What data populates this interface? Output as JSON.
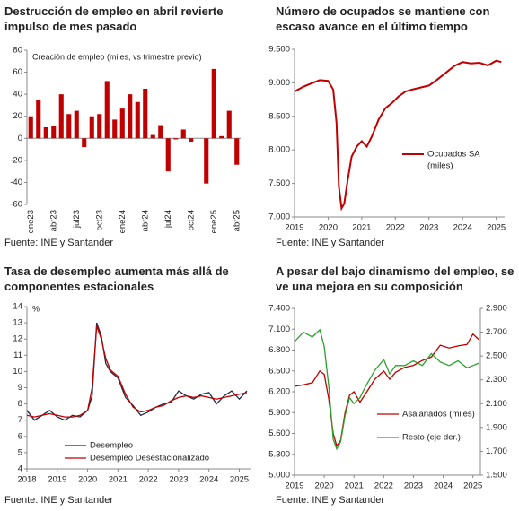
{
  "chart_data": [
    {
      "type": "bar",
      "title": "Destrucción de empleo en abril revierte impulso de mes pasado",
      "annotation": "Creación de empleo (miles, vs trimestre previo)",
      "source": "Fuente: INE y Santander",
      "color": "#c00000",
      "categories": [
        "ene23",
        null,
        null,
        "abr23",
        null,
        null,
        "jul23",
        null,
        null,
        "oct23",
        null,
        null,
        "ene24",
        null,
        null,
        "abr24",
        null,
        null,
        "jul24",
        null,
        null,
        "oct24",
        null,
        null,
        "ene25",
        null,
        null,
        "abr25"
      ],
      "values": [
        20,
        35,
        10,
        11,
        40,
        22,
        25,
        -8,
        20,
        22,
        52,
        17,
        27,
        40,
        33,
        45,
        3,
        12,
        -30,
        -1,
        8,
        -3,
        0,
        -41,
        63,
        2,
        25,
        -24
      ],
      "ylim": [
        -60,
        80
      ],
      "yticks": [
        -60,
        -40,
        -20,
        0,
        20,
        40,
        60,
        80
      ]
    },
    {
      "type": "line",
      "title": "Número de ocupados se mantiene con escaso avance en el último tiempo",
      "source": "Fuente: INE y Santander",
      "x": [
        2019,
        2019.25,
        2019.5,
        2019.75,
        2020,
        2020.15,
        2020.25,
        2020.32,
        2020.4,
        2020.48,
        2020.58,
        2020.7,
        2020.85,
        2021,
        2021.15,
        2021.3,
        2021.5,
        2021.7,
        2021.9,
        2022.1,
        2022.3,
        2022.5,
        2022.75,
        2023,
        2023.25,
        2023.5,
        2023.75,
        2024,
        2024.25,
        2024.5,
        2024.75,
        2025,
        2025.15
      ],
      "series": [
        {
          "name": "Ocupados SA",
          "color": "#c00000",
          "values": [
            8870,
            8940,
            8990,
            9040,
            9030,
            8900,
            8400,
            7450,
            7130,
            7200,
            7550,
            7900,
            8050,
            8130,
            8050,
            8200,
            8450,
            8620,
            8700,
            8800,
            8870,
            8900,
            8930,
            8960,
            9050,
            9150,
            9250,
            9310,
            9290,
            9300,
            9260,
            9330,
            9310
          ]
        }
      ],
      "legend_note": "(miles)",
      "xlim": [
        2019,
        2025.25
      ],
      "xticks": [
        2019,
        2020,
        2021,
        2022,
        2023,
        2024,
        2025
      ],
      "ylim": [
        7000,
        9500
      ],
      "yticks": [
        {
          "value": 7000,
          "label": "7.000"
        },
        {
          "value": 7500,
          "label": "7.500"
        },
        {
          "value": 8000,
          "label": "8.000"
        },
        {
          "value": 8500,
          "label": "8.500"
        },
        {
          "value": 9000,
          "label": "9.000"
        },
        {
          "value": 9500,
          "label": "9.500"
        }
      ]
    },
    {
      "type": "line",
      "title": "Tasa de desempleo aumenta más allá de componentes estacionales",
      "annotation": "%",
      "source": "Fuente: INE y Santander",
      "x": [
        2018,
        2018.25,
        2018.5,
        2018.75,
        2019,
        2019.25,
        2019.5,
        2019.75,
        2020,
        2020.15,
        2020.3,
        2020.45,
        2020.6,
        2020.75,
        2021,
        2021.25,
        2021.5,
        2021.75,
        2022,
        2022.25,
        2022.5,
        2022.75,
        2023,
        2023.25,
        2023.5,
        2023.75,
        2024,
        2024.25,
        2024.5,
        2024.75,
        2025,
        2025.25
      ],
      "series": [
        {
          "name": "Desempleo",
          "color": "#1f2a44",
          "values": [
            7.6,
            7.0,
            7.3,
            7.6,
            7.2,
            7.0,
            7.3,
            7.2,
            7.6,
            8.5,
            13.0,
            12.2,
            10.5,
            10.0,
            9.6,
            8.4,
            7.9,
            7.3,
            7.5,
            7.8,
            8.0,
            8.1,
            8.8,
            8.5,
            8.3,
            8.6,
            8.7,
            8.0,
            8.5,
            8.8,
            8.3,
            8.8
          ]
        },
        {
          "name": "Desempleo Desestacionalizado",
          "color": "#c00000",
          "values": [
            7.3,
            7.2,
            7.3,
            7.4,
            7.3,
            7.2,
            7.2,
            7.3,
            7.6,
            9.0,
            12.8,
            12.0,
            10.8,
            10.1,
            9.7,
            8.6,
            7.8,
            7.5,
            7.6,
            7.8,
            7.9,
            8.2,
            8.4,
            8.5,
            8.4,
            8.5,
            8.4,
            8.3,
            8.4,
            8.5,
            8.6,
            8.7
          ]
        }
      ],
      "xlim": [
        2018,
        2025.4
      ],
      "xticks": [
        2018,
        2019,
        2020,
        2021,
        2022,
        2023,
        2024,
        2025
      ],
      "ylim": [
        4,
        14
      ],
      "yticks": [
        4,
        5,
        6,
        7,
        8,
        9,
        10,
        11,
        12,
        13,
        14
      ]
    },
    {
      "type": "line",
      "title": "A pesar del bajo dinamismo del empleo, se ve una mejora en su composición",
      "source": "Fuente: INE y Santander",
      "x": [
        2019,
        2019.3,
        2019.6,
        2019.85,
        2020,
        2020.15,
        2020.3,
        2020.42,
        2020.55,
        2020.7,
        2020.85,
        2021,
        2021.2,
        2021.4,
        2021.7,
        2022,
        2022.2,
        2022.4,
        2022.7,
        2023,
        2023.3,
        2023.6,
        2023.9,
        2024.2,
        2024.5,
        2024.8,
        2025,
        2025.2
      ],
      "series": [
        {
          "name": "Asalariados (miles)",
          "color": "#c00000",
          "values": [
            6280,
            6300,
            6330,
            6500,
            6450,
            6100,
            5600,
            5420,
            5500,
            5900,
            6150,
            6200,
            6050,
            6180,
            6380,
            6500,
            6380,
            6480,
            6550,
            6580,
            6650,
            6700,
            6870,
            6830,
            6860,
            6880,
            7030,
            6950
          ]
        },
        {
          "name": "Resto (eje der.)",
          "color": "#2ca02c",
          "axis": "y2",
          "values": [
            2620,
            2700,
            2660,
            2720,
            2580,
            2250,
            1800,
            1720,
            1780,
            2000,
            2150,
            2100,
            2150,
            2250,
            2380,
            2470,
            2350,
            2420,
            2420,
            2460,
            2420,
            2520,
            2450,
            2420,
            2460,
            2400,
            2420,
            2440
          ]
        }
      ],
      "xlim": [
        2019,
        2025.25
      ],
      "xticks": [
        2019,
        2020,
        2021,
        2022,
        2023,
        2024,
        2025
      ],
      "ylim": [
        5000,
        7400
      ],
      "yticks": [
        {
          "value": 5000,
          "label": "5.000"
        },
        {
          "value": 5300,
          "label": "5.300"
        },
        {
          "value": 5600,
          "label": "5.600"
        },
        {
          "value": 5900,
          "label": "5.900"
        },
        {
          "value": 6200,
          "label": "6.200"
        },
        {
          "value": 6500,
          "label": "6.500"
        },
        {
          "value": 6800,
          "label": "6.800"
        },
        {
          "value": 7100,
          "label": "7.100"
        },
        {
          "value": 7400,
          "label": "7.400"
        }
      ],
      "y2lim": [
        1500,
        2900
      ],
      "y2ticks": [
        {
          "value": 1500,
          "label": "1.500"
        },
        {
          "value": 1700,
          "label": "1.700"
        },
        {
          "value": 1900,
          "label": "1.900"
        },
        {
          "value": 2100,
          "label": "2.100"
        },
        {
          "value": 2300,
          "label": "2.300"
        },
        {
          "value": 2500,
          "label": "2.500"
        },
        {
          "value": 2700,
          "label": "2.700"
        },
        {
          "value": 2900,
          "label": "2.900"
        }
      ]
    }
  ]
}
